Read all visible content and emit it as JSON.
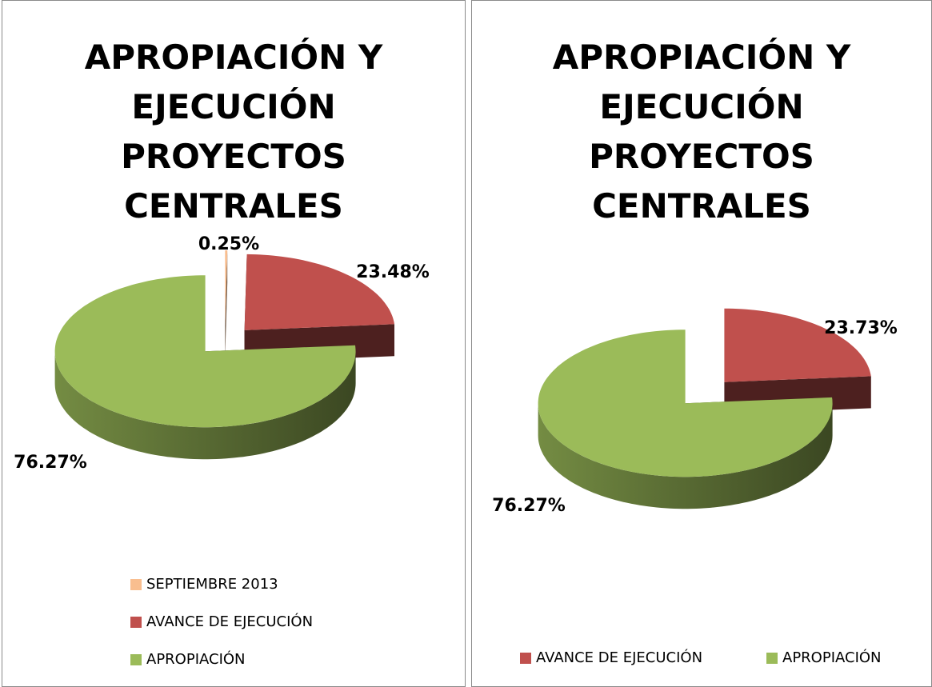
{
  "chart_data": [
    {
      "type": "pie3d",
      "title": "APROPIACIÓN Y EJECUCIÓN PROYECTOS CENTRALES",
      "categories": [
        "SEPTIEMBRE 2013",
        "AVANCE DE EJECUCIÓN",
        "APROPIACIÓN"
      ],
      "values": [
        0.25,
        23.48,
        76.27
      ],
      "value_labels": [
        "0.25%",
        "23.48%",
        "76.27%"
      ],
      "colors": [
        "#f9be8f",
        "#c0504d",
        "#9bbb59"
      ],
      "legend": "bottom-vertical"
    },
    {
      "type": "pie3d",
      "title": "APROPIACIÓN Y EJECUCIÓN PROYECTOS CENTRALES",
      "categories": [
        "AVANCE DE EJECUCIÓN",
        "APROPIACIÓN"
      ],
      "values": [
        23.73,
        76.27
      ],
      "value_labels": [
        "23.73%",
        "76.27%"
      ],
      "colors": [
        "#c0504d",
        "#9bbb59"
      ],
      "legend": "bottom-horizontal"
    }
  ]
}
